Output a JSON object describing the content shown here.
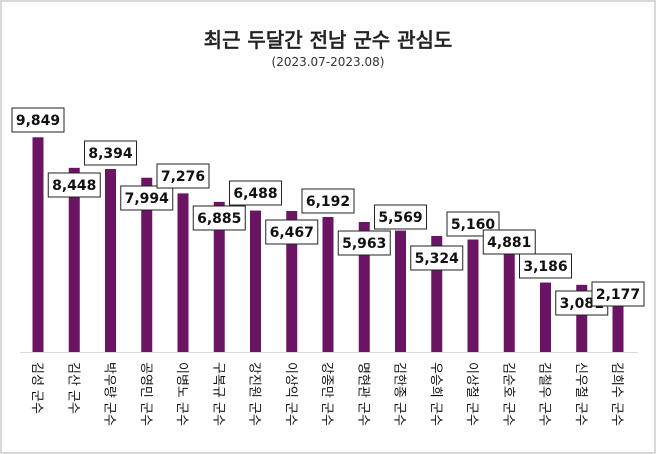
{
  "chart_data": {
    "type": "bar",
    "title": "최근 두달간 전남 군수 관심도",
    "subtitle": "(2023.07-2023.08)",
    "categories": [
      "김성 군수",
      "김산 군수",
      "박우량 군수",
      "공영민 군수",
      "이병노 군수",
      "구복규 군수",
      "강진원 군수",
      "이상익 군수",
      "강종만 군수",
      "명현관 군수",
      "김한종 군수",
      "우승희 군수",
      "이상철 군수",
      "김순호 군수",
      "김철우 군수",
      "신우철 군수",
      "김희수 군수"
    ],
    "values": [
      9849,
      8448,
      8394,
      7994,
      7276,
      6885,
      6488,
      6467,
      6192,
      5963,
      5569,
      5324,
      5160,
      4881,
      3186,
      3081,
      2177
    ],
    "value_labels": [
      "9,849",
      "8,448",
      "8,394",
      "7,994",
      "7,276",
      "6,885",
      "6,488",
      "6,467",
      "6,192",
      "5,963",
      "5,569",
      "5,324",
      "5,160",
      "4,881",
      "3,186",
      "3,081",
      "2,177"
    ],
    "ylim": [
      0,
      10000
    ],
    "grid": false,
    "legend": "none",
    "bar_color": "#6B1464"
  }
}
